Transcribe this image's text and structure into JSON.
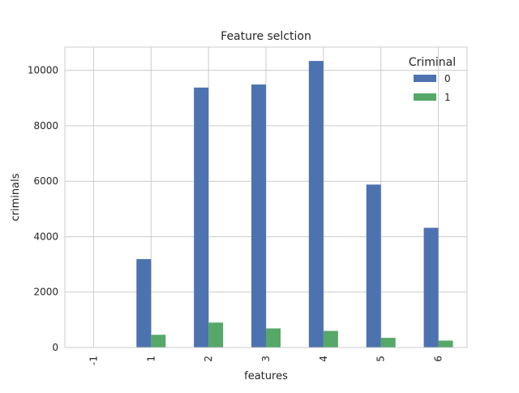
{
  "chart_data": {
    "type": "bar",
    "title": "Feature selction",
    "xlabel": "features",
    "ylabel": "criminals",
    "categories": [
      "-1",
      "1",
      "2",
      "3",
      "4",
      "5",
      "6"
    ],
    "series": [
      {
        "name": "0",
        "color": "#4c72b0",
        "values": [
          0,
          3190,
          9380,
          9490,
          10340,
          5880,
          4320
        ]
      },
      {
        "name": "1",
        "color": "#55a868",
        "values": [
          0,
          460,
          900,
          690,
          600,
          350,
          250
        ]
      }
    ],
    "ylim": [
      0,
      10840
    ],
    "yticks": [
      0,
      2000,
      4000,
      6000,
      8000,
      10000
    ],
    "grid": true,
    "legend": {
      "title": "Criminal",
      "placement": "top-right"
    }
  }
}
